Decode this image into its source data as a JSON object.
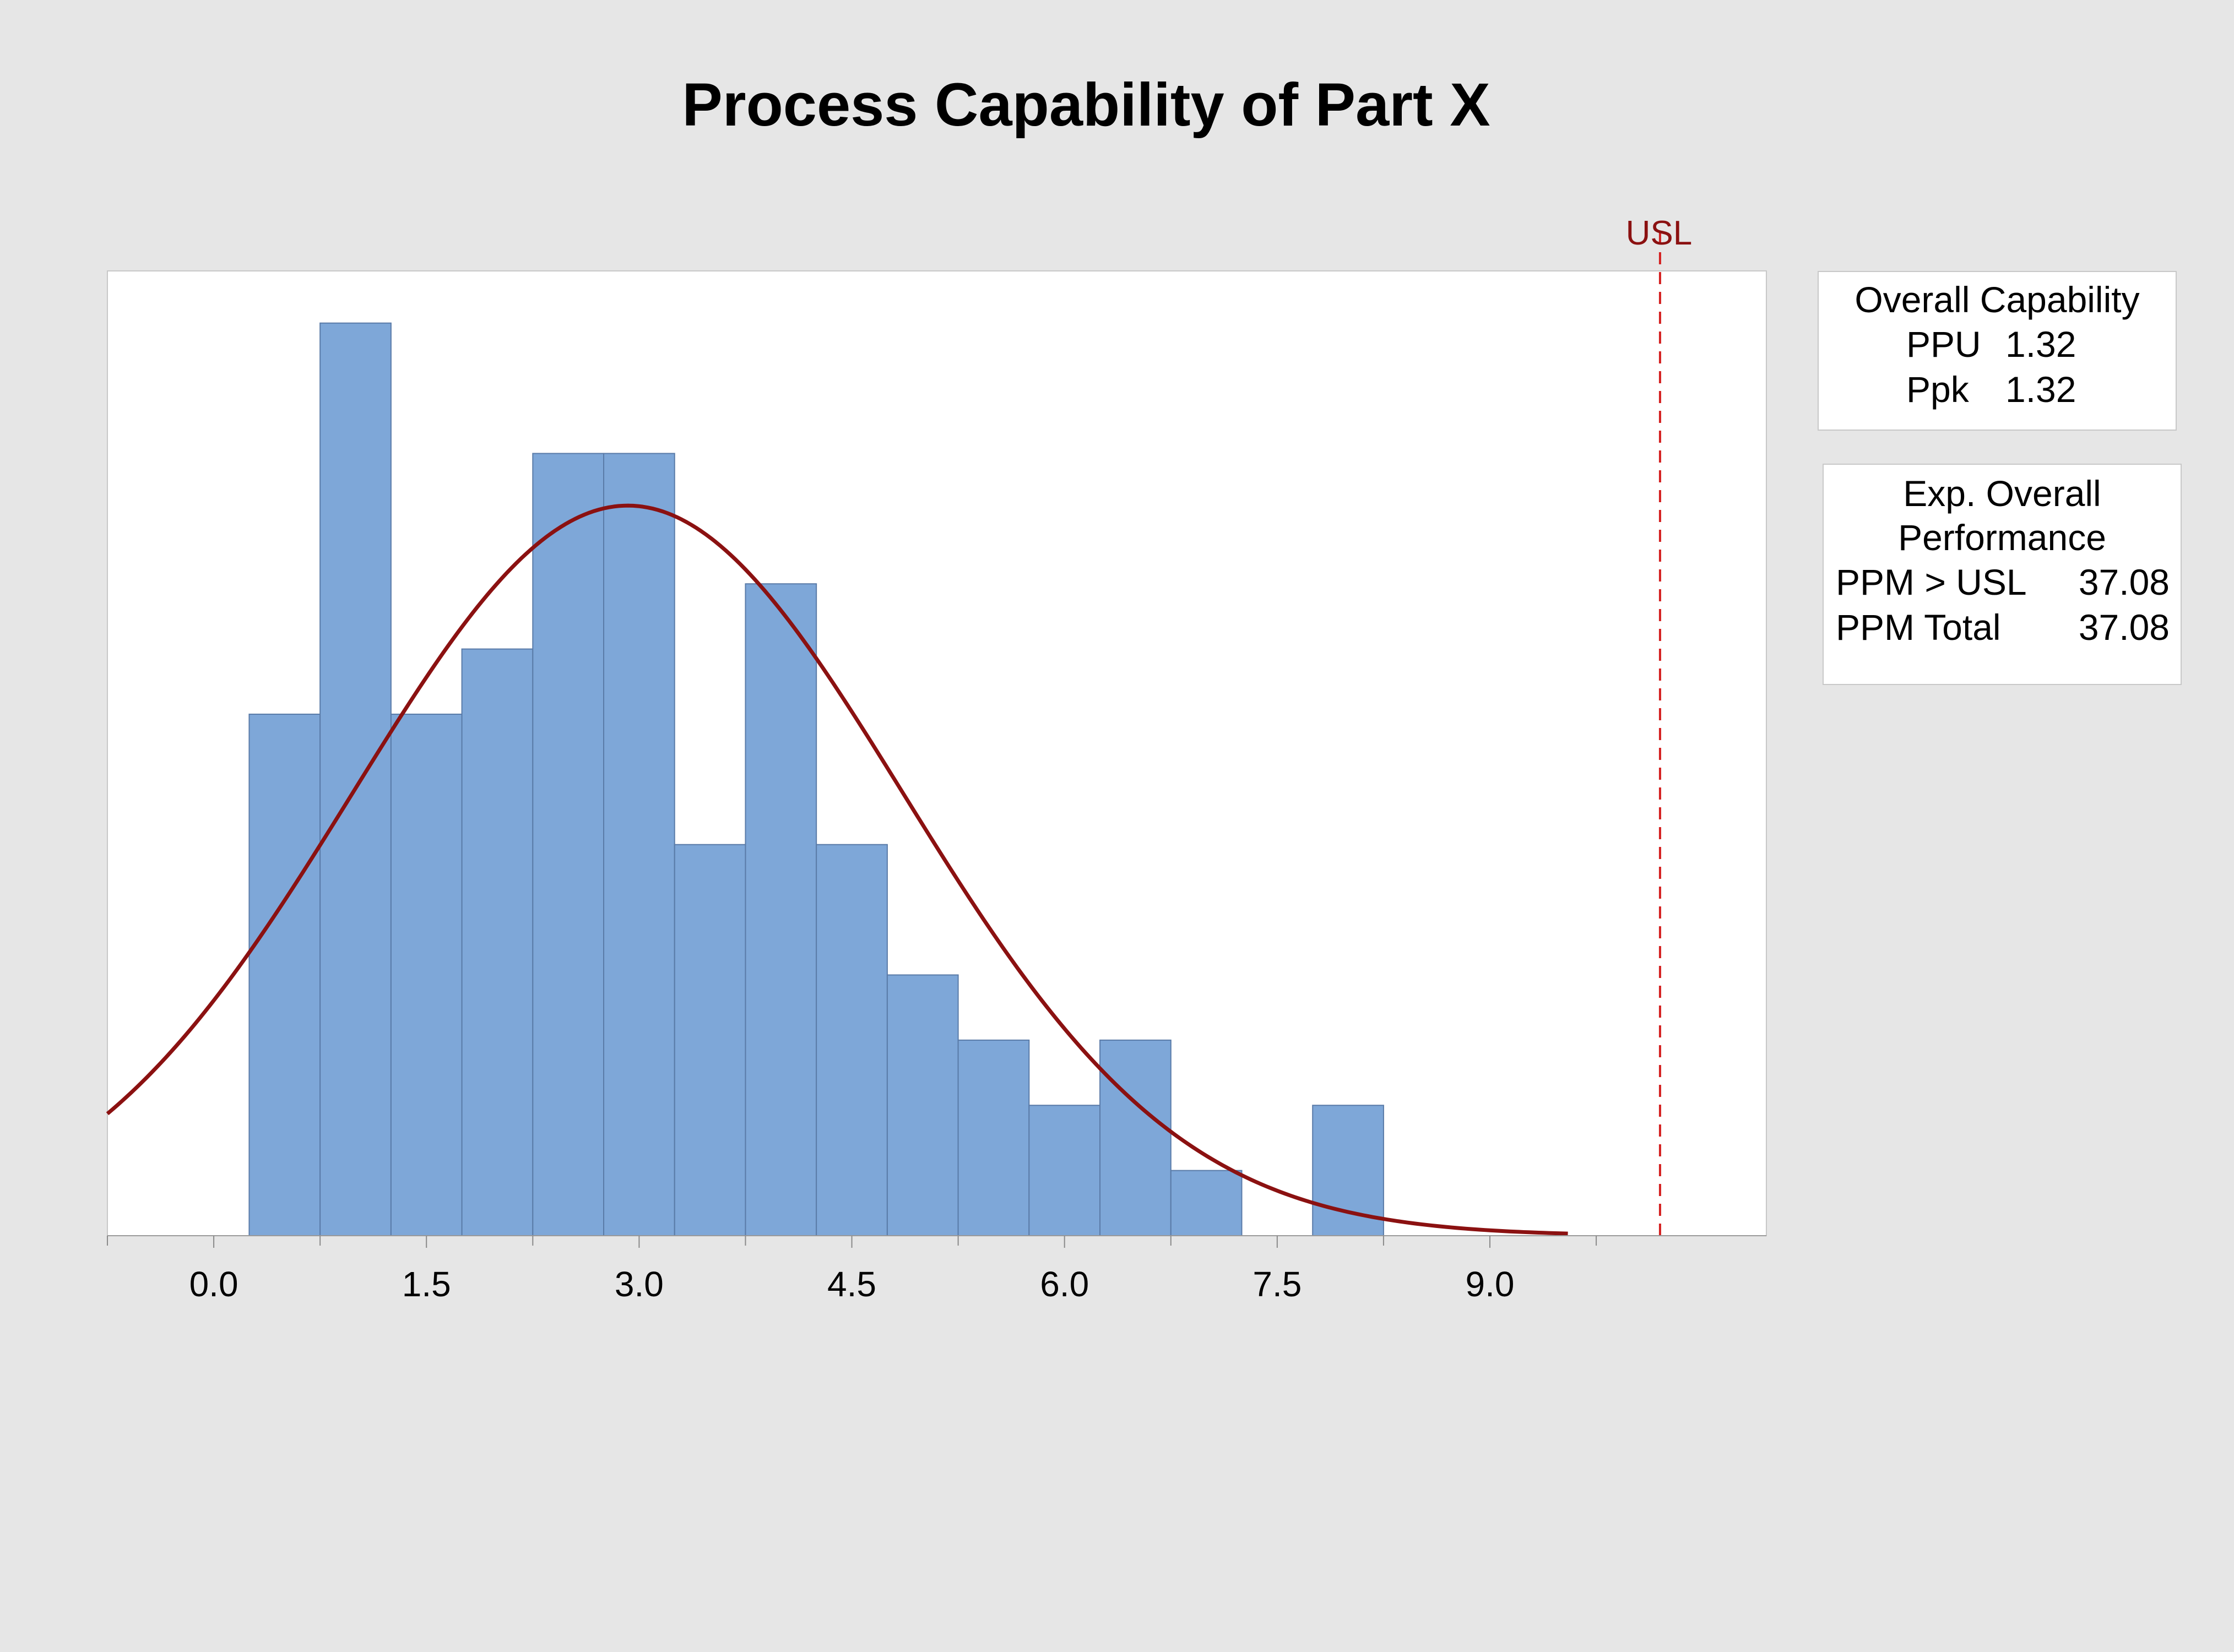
{
  "chart_data": {
    "type": "bar",
    "title": "Process Capability of Part X",
    "xlabel": "",
    "ylabel": "",
    "bin_width": 0.5,
    "bins": [
      {
        "start": 0.25,
        "end": 0.75,
        "count": 8
      },
      {
        "start": 0.75,
        "end": 1.25,
        "count": 14
      },
      {
        "start": 1.25,
        "end": 1.75,
        "count": 8
      },
      {
        "start": 1.75,
        "end": 2.25,
        "count": 9
      },
      {
        "start": 2.25,
        "end": 2.75,
        "count": 12
      },
      {
        "start": 2.75,
        "end": 3.25,
        "count": 12
      },
      {
        "start": 3.25,
        "end": 3.75,
        "count": 6
      },
      {
        "start": 3.75,
        "end": 4.25,
        "count": 10
      },
      {
        "start": 4.25,
        "end": 4.75,
        "count": 6
      },
      {
        "start": 4.75,
        "end": 5.25,
        "count": 4
      },
      {
        "start": 5.25,
        "end": 5.75,
        "count": 3
      },
      {
        "start": 5.75,
        "end": 6.25,
        "count": 2
      },
      {
        "start": 6.25,
        "end": 6.75,
        "count": 3
      },
      {
        "start": 6.75,
        "end": 7.25,
        "count": 1
      },
      {
        "start": 7.25,
        "end": 7.75,
        "count": 0
      },
      {
        "start": 7.75,
        "end": 8.25,
        "count": 2
      }
    ],
    "xlim": [
      -0.75,
      10.95
    ],
    "ylim": [
      0,
      14.8
    ],
    "xticks": [
      0.0,
      1.5,
      3.0,
      4.5,
      6.0,
      7.5,
      9.0
    ],
    "xtick_labels": [
      "0.0",
      "1.5",
      "3.0",
      "4.5",
      "6.0",
      "7.5",
      "9.0"
    ],
    "minor_xticks": [
      -0.75,
      0.75,
      2.25,
      3.75,
      5.25,
      6.75,
      8.25,
      9.75
    ],
    "fit_curve": {
      "type": "normal",
      "mean": 2.92,
      "sd": 1.94,
      "x_range": [
        -0.75,
        9.55
      ],
      "y_scale": 11.2
    },
    "usl": {
      "label": "USL",
      "value": 10.2
    },
    "grid": false,
    "colors": {
      "bar_fill": "#7ea7d8",
      "bar_stroke": "#5a7ba8",
      "curve": "#8b1111",
      "usl_line": "#d42020",
      "plot_bg": "#ffffff",
      "page_bg": "#e6e6e6"
    }
  },
  "overall_capability": {
    "heading": "Overall Capability",
    "rows": [
      {
        "label": "PPU",
        "value": "1.32"
      },
      {
        "label": "Ppk",
        "value": "1.32"
      }
    ]
  },
  "exp_overall_performance": {
    "heading_line1": "Exp. Overall",
    "heading_line2": "Performance",
    "rows": [
      {
        "label": "PPM > USL",
        "value": "37.08"
      },
      {
        "label": "PPM Total",
        "value": "37.08"
      }
    ]
  }
}
